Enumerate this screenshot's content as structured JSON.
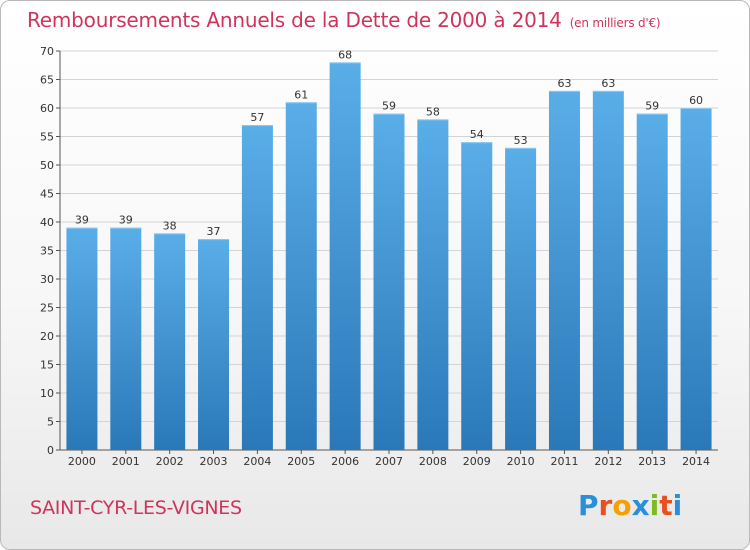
{
  "header": {
    "title": "Remboursements Annuels de la Dette de 2000 à 2014",
    "subtitle": "(en milliers d'€)"
  },
  "footer": {
    "commune": "SAINT-CYR-LES-VIGNES",
    "logo_text": "Proxiti",
    "logo_colors": [
      "#2a8fd8",
      "#e8501e",
      "#f5a000",
      "#2a8fd8",
      "#7dbb1f",
      "#e8501e",
      "#2a8fd8"
    ]
  },
  "chart_data": {
    "type": "bar",
    "categories": [
      "2000",
      "2001",
      "2002",
      "2003",
      "2004",
      "2005",
      "2006",
      "2007",
      "2008",
      "2009",
      "2010",
      "2011",
      "2012",
      "2013",
      "2014"
    ],
    "values": [
      39,
      39,
      38,
      37,
      57,
      61,
      68,
      59,
      58,
      54,
      53,
      63,
      63,
      59,
      60
    ],
    "ylim": [
      0,
      70
    ],
    "yticks": [
      0,
      5,
      10,
      15,
      20,
      25,
      30,
      35,
      40,
      45,
      50,
      55,
      60,
      65,
      70
    ],
    "grid": true,
    "bar_color_top": "#5aaee8",
    "bar_color_bottom": "#2a78b8"
  }
}
